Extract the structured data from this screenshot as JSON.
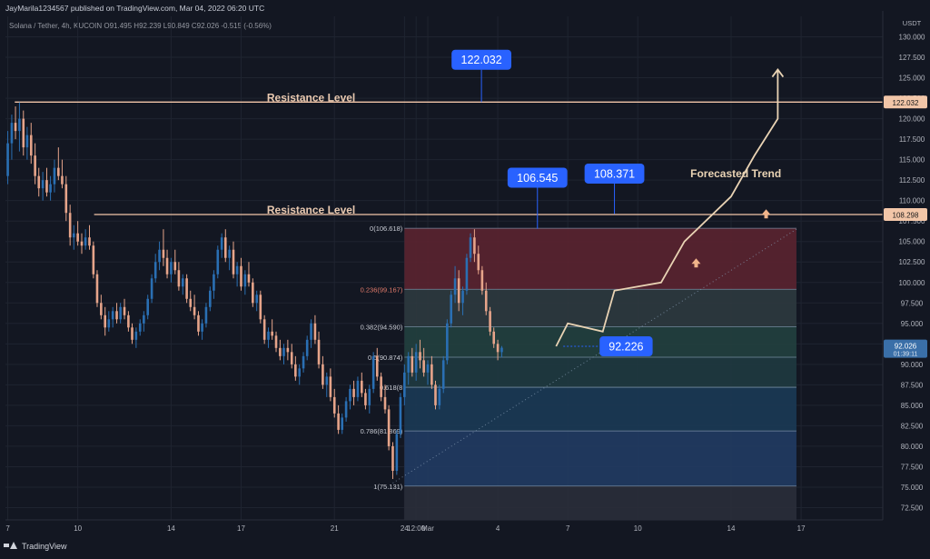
{
  "header": {
    "published_by": "JayMarila1234567 published on TradingView.com, Mar 04, 2022 06:20 UTC"
  },
  "symbol": {
    "name": "Solana / Tether, 4h, KUCOIN",
    "ohlc": "O91.495 H92.239 L90.849 C92.026 -0.515 (-0.56%)"
  },
  "footer": {
    "brand": "TradingView"
  },
  "chart_data": {
    "type": "candlestick",
    "y_axis_unit": "USDT",
    "y_ticks": [
      72.5,
      75.0,
      77.5,
      80.0,
      82.5,
      85.0,
      87.5,
      90.0,
      92.5,
      95.0,
      97.5,
      100.0,
      102.5,
      105.0,
      107.5,
      110.0,
      112.5,
      115.0,
      117.5,
      120.0,
      122.5,
      125.0,
      127.5,
      130.0
    ],
    "y_tick_labels": [
      "72.500",
      "75.000",
      "77.500",
      "80.000",
      "82.500",
      "85.000",
      "87.500",
      "90.000",
      "92.500",
      "95.000",
      "97.500",
      "100.000",
      "102.500",
      "105.000",
      "107.500",
      "110.000",
      "112.500",
      "115.000",
      "117.500",
      "120.000",
      "122.500",
      "125.000",
      "127.500",
      "130.000"
    ],
    "ylim": [
      71.0,
      132.5
    ],
    "x_ticks": [
      {
        "label": "7",
        "day": 0
      },
      {
        "label": "10",
        "day": 3
      },
      {
        "label": "14",
        "day": 7
      },
      {
        "label": "17",
        "day": 10
      },
      {
        "label": "21",
        "day": 14
      },
      {
        "label": "24",
        "day": 17
      },
      {
        "label": "12:00",
        "day": 17.5
      },
      {
        "label": "Mar",
        "day": 18
      },
      {
        "label": "4",
        "day": 21
      },
      {
        "label": "7",
        "day": 24
      },
      {
        "label": "10",
        "day": 27
      },
      {
        "label": "14",
        "day": 31
      },
      {
        "label": "17",
        "day": 34
      }
    ],
    "xlim": [
      -0.1,
      37.5
    ],
    "candles": [
      {
        "d": 0.0,
        "o": 113.0,
        "h": 118.5,
        "l": 112.0,
        "c": 117.0
      },
      {
        "d": 0.17,
        "o": 117.0,
        "h": 120.5,
        "l": 115.0,
        "c": 119.5
      },
      {
        "d": 0.33,
        "o": 119.5,
        "h": 121.5,
        "l": 117.5,
        "c": 118.5
      },
      {
        "d": 0.5,
        "o": 118.5,
        "h": 122.0,
        "l": 116.0,
        "c": 120.0
      },
      {
        "d": 0.67,
        "o": 120.0,
        "h": 121.0,
        "l": 115.5,
        "c": 116.5
      },
      {
        "d": 0.83,
        "o": 116.5,
        "h": 119.0,
        "l": 115.0,
        "c": 118.0
      },
      {
        "d": 1.0,
        "o": 118.0,
        "h": 119.5,
        "l": 114.5,
        "c": 115.5
      },
      {
        "d": 1.17,
        "o": 115.5,
        "h": 117.0,
        "l": 112.0,
        "c": 113.0
      },
      {
        "d": 1.33,
        "o": 113.0,
        "h": 114.0,
        "l": 110.5,
        "c": 111.5
      },
      {
        "d": 1.5,
        "o": 111.5,
        "h": 113.5,
        "l": 110.0,
        "c": 112.5
      },
      {
        "d": 1.67,
        "o": 112.5,
        "h": 114.0,
        "l": 110.5,
        "c": 111.0
      },
      {
        "d": 1.83,
        "o": 111.0,
        "h": 113.0,
        "l": 110.0,
        "c": 112.0
      },
      {
        "d": 2.0,
        "o": 112.0,
        "h": 115.0,
        "l": 111.0,
        "c": 114.0
      },
      {
        "d": 2.17,
        "o": 114.0,
        "h": 116.5,
        "l": 112.5,
        "c": 113.0
      },
      {
        "d": 2.33,
        "o": 113.0,
        "h": 115.0,
        "l": 111.5,
        "c": 112.0
      },
      {
        "d": 2.5,
        "o": 112.0,
        "h": 113.0,
        "l": 107.5,
        "c": 108.5
      },
      {
        "d": 2.67,
        "o": 108.5,
        "h": 109.5,
        "l": 104.5,
        "c": 105.5
      },
      {
        "d": 2.83,
        "o": 105.5,
        "h": 107.0,
        "l": 104.0,
        "c": 106.0
      },
      {
        "d": 3.0,
        "o": 106.0,
        "h": 107.5,
        "l": 104.5,
        "c": 105.0
      },
      {
        "d": 3.17,
        "o": 105.0,
        "h": 106.0,
        "l": 103.5,
        "c": 104.5
      },
      {
        "d": 3.33,
        "o": 104.5,
        "h": 106.5,
        "l": 104.0,
        "c": 105.5
      },
      {
        "d": 3.5,
        "o": 105.5,
        "h": 107.0,
        "l": 104.0,
        "c": 104.5
      },
      {
        "d": 3.67,
        "o": 104.5,
        "h": 105.0,
        "l": 100.5,
        "c": 101.0
      },
      {
        "d": 3.83,
        "o": 101.0,
        "h": 101.5,
        "l": 97.0,
        "c": 97.5
      },
      {
        "d": 4.0,
        "o": 97.5,
        "h": 98.5,
        "l": 95.5,
        "c": 96.0
      },
      {
        "d": 4.17,
        "o": 96.0,
        "h": 97.0,
        "l": 93.5,
        "c": 94.5
      },
      {
        "d": 4.33,
        "o": 94.5,
        "h": 96.5,
        "l": 94.0,
        "c": 95.5
      },
      {
        "d": 4.5,
        "o": 95.5,
        "h": 97.0,
        "l": 94.5,
        "c": 96.5
      },
      {
        "d": 4.67,
        "o": 96.5,
        "h": 97.5,
        "l": 95.0,
        "c": 95.5
      },
      {
        "d": 4.83,
        "o": 95.5,
        "h": 97.5,
        "l": 95.0,
        "c": 97.0
      },
      {
        "d": 5.0,
        "o": 97.0,
        "h": 98.0,
        "l": 95.5,
        "c": 96.0
      },
      {
        "d": 5.17,
        "o": 96.0,
        "h": 96.5,
        "l": 94.0,
        "c": 94.5
      },
      {
        "d": 5.33,
        "o": 94.5,
        "h": 95.0,
        "l": 92.5,
        "c": 93.0
      },
      {
        "d": 5.5,
        "o": 93.0,
        "h": 94.5,
        "l": 92.0,
        "c": 94.0
      },
      {
        "d": 5.67,
        "o": 94.0,
        "h": 95.5,
        "l": 93.5,
        "c": 95.0
      },
      {
        "d": 5.83,
        "o": 95.0,
        "h": 96.5,
        "l": 94.0,
        "c": 96.0
      },
      {
        "d": 6.0,
        "o": 96.0,
        "h": 98.5,
        "l": 95.5,
        "c": 98.0
      },
      {
        "d": 6.17,
        "o": 98.0,
        "h": 101.0,
        "l": 97.5,
        "c": 100.5
      },
      {
        "d": 6.33,
        "o": 100.5,
        "h": 103.5,
        "l": 100.0,
        "c": 102.5
      },
      {
        "d": 6.5,
        "o": 102.5,
        "h": 105.0,
        "l": 101.5,
        "c": 104.0
      },
      {
        "d": 6.67,
        "o": 104.0,
        "h": 106.5,
        "l": 102.0,
        "c": 103.0
      },
      {
        "d": 6.83,
        "o": 103.0,
        "h": 104.0,
        "l": 100.5,
        "c": 101.0
      },
      {
        "d": 7.0,
        "o": 101.0,
        "h": 103.0,
        "l": 100.0,
        "c": 102.5
      },
      {
        "d": 7.17,
        "o": 102.5,
        "h": 104.0,
        "l": 101.0,
        "c": 101.5
      },
      {
        "d": 7.33,
        "o": 101.5,
        "h": 102.5,
        "l": 99.0,
        "c": 99.5
      },
      {
        "d": 7.5,
        "o": 99.5,
        "h": 101.0,
        "l": 98.5,
        "c": 100.5
      },
      {
        "d": 7.67,
        "o": 100.5,
        "h": 101.0,
        "l": 97.5,
        "c": 98.0
      },
      {
        "d": 7.83,
        "o": 98.0,
        "h": 99.0,
        "l": 96.5,
        "c": 97.0
      },
      {
        "d": 8.0,
        "o": 97.0,
        "h": 98.5,
        "l": 95.5,
        "c": 96.0
      },
      {
        "d": 8.17,
        "o": 96.0,
        "h": 96.5,
        "l": 93.5,
        "c": 94.0
      },
      {
        "d": 8.33,
        "o": 94.0,
        "h": 95.5,
        "l": 93.0,
        "c": 95.0
      },
      {
        "d": 8.5,
        "o": 95.0,
        "h": 97.5,
        "l": 94.5,
        "c": 97.0
      },
      {
        "d": 8.67,
        "o": 97.0,
        "h": 99.5,
        "l": 96.5,
        "c": 99.0
      },
      {
        "d": 8.83,
        "o": 99.0,
        "h": 101.5,
        "l": 98.0,
        "c": 101.0
      },
      {
        "d": 9.0,
        "o": 101.0,
        "h": 104.5,
        "l": 100.5,
        "c": 104.0
      },
      {
        "d": 9.17,
        "o": 104.0,
        "h": 106.0,
        "l": 103.0,
        "c": 105.5
      },
      {
        "d": 9.33,
        "o": 105.5,
        "h": 106.5,
        "l": 102.5,
        "c": 103.0
      },
      {
        "d": 9.5,
        "o": 103.0,
        "h": 104.5,
        "l": 101.5,
        "c": 104.0
      },
      {
        "d": 9.67,
        "o": 104.0,
        "h": 105.0,
        "l": 100.5,
        "c": 101.0
      },
      {
        "d": 9.83,
        "o": 101.0,
        "h": 102.5,
        "l": 99.5,
        "c": 102.0
      },
      {
        "d": 10.0,
        "o": 102.0,
        "h": 103.0,
        "l": 99.0,
        "c": 99.5
      },
      {
        "d": 10.17,
        "o": 99.5,
        "h": 101.5,
        "l": 98.5,
        "c": 101.0
      },
      {
        "d": 10.33,
        "o": 101.0,
        "h": 102.5,
        "l": 99.5,
        "c": 100.0
      },
      {
        "d": 10.5,
        "o": 100.0,
        "h": 100.5,
        "l": 97.0,
        "c": 97.5
      },
      {
        "d": 10.67,
        "o": 97.5,
        "h": 99.0,
        "l": 96.5,
        "c": 98.5
      },
      {
        "d": 10.83,
        "o": 98.5,
        "h": 99.0,
        "l": 95.0,
        "c": 95.5
      },
      {
        "d": 11.0,
        "o": 95.5,
        "h": 96.0,
        "l": 92.5,
        "c": 93.0
      },
      {
        "d": 11.17,
        "o": 93.0,
        "h": 94.5,
        "l": 92.0,
        "c": 94.0
      },
      {
        "d": 11.33,
        "o": 94.0,
        "h": 95.5,
        "l": 93.0,
        "c": 93.5
      },
      {
        "d": 11.5,
        "o": 93.5,
        "h": 94.0,
        "l": 91.5,
        "c": 92.0
      },
      {
        "d": 11.67,
        "o": 92.0,
        "h": 93.0,
        "l": 90.5,
        "c": 91.0
      },
      {
        "d": 11.83,
        "o": 91.0,
        "h": 92.5,
        "l": 90.0,
        "c": 92.0
      },
      {
        "d": 12.0,
        "o": 92.0,
        "h": 93.0,
        "l": 90.5,
        "c": 91.5
      },
      {
        "d": 12.17,
        "o": 91.5,
        "h": 92.5,
        "l": 89.5,
        "c": 90.0
      },
      {
        "d": 12.33,
        "o": 90.0,
        "h": 91.0,
        "l": 88.0,
        "c": 88.5
      },
      {
        "d": 12.5,
        "o": 88.5,
        "h": 90.0,
        "l": 87.5,
        "c": 89.5
      },
      {
        "d": 12.67,
        "o": 89.5,
        "h": 91.5,
        "l": 89.0,
        "c": 91.0
      },
      {
        "d": 12.83,
        "o": 91.0,
        "h": 93.5,
        "l": 90.5,
        "c": 93.0
      },
      {
        "d": 13.0,
        "o": 93.0,
        "h": 95.5,
        "l": 92.0,
        "c": 95.0
      },
      {
        "d": 13.17,
        "o": 95.0,
        "h": 96.0,
        "l": 92.5,
        "c": 93.0
      },
      {
        "d": 13.33,
        "o": 93.0,
        "h": 94.0,
        "l": 89.5,
        "c": 90.0
      },
      {
        "d": 13.5,
        "o": 90.0,
        "h": 91.0,
        "l": 87.0,
        "c": 87.5
      },
      {
        "d": 13.67,
        "o": 87.5,
        "h": 89.0,
        "l": 86.0,
        "c": 88.5
      },
      {
        "d": 13.83,
        "o": 88.5,
        "h": 89.5,
        "l": 85.5,
        "c": 86.0
      },
      {
        "d": 14.0,
        "o": 86.0,
        "h": 87.0,
        "l": 83.5,
        "c": 84.0
      },
      {
        "d": 14.17,
        "o": 84.0,
        "h": 85.0,
        "l": 81.5,
        "c": 82.0
      },
      {
        "d": 14.33,
        "o": 82.0,
        "h": 84.0,
        "l": 81.5,
        "c": 83.5
      },
      {
        "d": 14.5,
        "o": 83.5,
        "h": 86.0,
        "l": 83.0,
        "c": 85.5
      },
      {
        "d": 14.67,
        "o": 85.5,
        "h": 87.5,
        "l": 84.5,
        "c": 87.0
      },
      {
        "d": 14.83,
        "o": 87.0,
        "h": 88.0,
        "l": 85.0,
        "c": 86.0
      },
      {
        "d": 15.0,
        "o": 86.0,
        "h": 88.5,
        "l": 85.5,
        "c": 88.0
      },
      {
        "d": 15.17,
        "o": 88.0,
        "h": 89.0,
        "l": 86.0,
        "c": 86.5
      },
      {
        "d": 15.33,
        "o": 86.5,
        "h": 87.0,
        "l": 84.5,
        "c": 85.0
      },
      {
        "d": 15.5,
        "o": 85.0,
        "h": 87.5,
        "l": 84.0,
        "c": 87.0
      },
      {
        "d": 15.67,
        "o": 87.0,
        "h": 91.5,
        "l": 86.5,
        "c": 91.0
      },
      {
        "d": 15.83,
        "o": 91.0,
        "h": 92.0,
        "l": 88.0,
        "c": 88.5
      },
      {
        "d": 16.0,
        "o": 88.5,
        "h": 89.0,
        "l": 85.5,
        "c": 86.0
      },
      {
        "d": 16.17,
        "o": 86.0,
        "h": 87.5,
        "l": 84.0,
        "c": 84.5
      },
      {
        "d": 16.33,
        "o": 84.5,
        "h": 85.0,
        "l": 79.5,
        "c": 80.0
      },
      {
        "d": 16.5,
        "o": 80.0,
        "h": 80.5,
        "l": 76.0,
        "c": 77.0
      },
      {
        "d": 16.67,
        "o": 77.0,
        "h": 82.0,
        "l": 76.5,
        "c": 81.5
      },
      {
        "d": 16.83,
        "o": 81.5,
        "h": 86.5,
        "l": 81.0,
        "c": 86.0
      },
      {
        "d": 17.0,
        "o": 86.0,
        "h": 90.0,
        "l": 85.0,
        "c": 89.0
      },
      {
        "d": 17.17,
        "o": 89.0,
        "h": 91.5,
        "l": 87.5,
        "c": 91.0
      },
      {
        "d": 17.33,
        "o": 91.0,
        "h": 92.0,
        "l": 88.5,
        "c": 89.0
      },
      {
        "d": 17.5,
        "o": 89.0,
        "h": 92.5,
        "l": 88.0,
        "c": 91.5
      },
      {
        "d": 17.67,
        "o": 91.5,
        "h": 93.0,
        "l": 89.5,
        "c": 90.5
      },
      {
        "d": 17.83,
        "o": 90.5,
        "h": 92.0,
        "l": 88.5,
        "c": 89.0
      },
      {
        "d": 18.0,
        "o": 89.0,
        "h": 90.5,
        "l": 87.5,
        "c": 90.0
      },
      {
        "d": 18.17,
        "o": 90.0,
        "h": 91.0,
        "l": 87.0,
        "c": 87.5
      },
      {
        "d": 18.33,
        "o": 87.5,
        "h": 88.0,
        "l": 84.5,
        "c": 85.0
      },
      {
        "d": 18.5,
        "o": 85.0,
        "h": 87.5,
        "l": 84.5,
        "c": 87.0
      },
      {
        "d": 18.67,
        "o": 87.0,
        "h": 91.0,
        "l": 86.5,
        "c": 90.5
      },
      {
        "d": 18.83,
        "o": 90.5,
        "h": 95.5,
        "l": 90.0,
        "c": 95.0
      },
      {
        "d": 19.0,
        "o": 95.0,
        "h": 99.0,
        "l": 94.5,
        "c": 98.5
      },
      {
        "d": 19.17,
        "o": 98.5,
        "h": 102.0,
        "l": 97.5,
        "c": 100.5
      },
      {
        "d": 19.33,
        "o": 100.5,
        "h": 101.5,
        "l": 96.5,
        "c": 97.5
      },
      {
        "d": 19.5,
        "o": 97.5,
        "h": 99.5,
        "l": 96.0,
        "c": 99.0
      },
      {
        "d": 19.67,
        "o": 99.0,
        "h": 103.5,
        "l": 98.5,
        "c": 103.0
      },
      {
        "d": 19.83,
        "o": 103.0,
        "h": 106.0,
        "l": 102.5,
        "c": 105.5
      },
      {
        "d": 20.0,
        "o": 105.5,
        "h": 106.5,
        "l": 102.5,
        "c": 103.5
      },
      {
        "d": 20.17,
        "o": 103.5,
        "h": 104.5,
        "l": 101.0,
        "c": 101.5
      },
      {
        "d": 20.33,
        "o": 101.5,
        "h": 102.0,
        "l": 98.5,
        "c": 99.0
      },
      {
        "d": 20.5,
        "o": 99.0,
        "h": 100.0,
        "l": 96.0,
        "c": 96.5
      },
      {
        "d": 20.67,
        "o": 96.5,
        "h": 97.0,
        "l": 93.5,
        "c": 94.0
      },
      {
        "d": 20.83,
        "o": 94.0,
        "h": 94.5,
        "l": 92.0,
        "c": 92.5
      },
      {
        "d": 21.0,
        "o": 92.5,
        "h": 93.0,
        "l": 90.5,
        "c": 91.5
      },
      {
        "d": 21.17,
        "o": 91.495,
        "h": 92.239,
        "l": 90.849,
        "c": 92.026
      }
    ],
    "fib_levels": [
      {
        "ratio": "0",
        "price": 106.618,
        "label": "0(106.618)"
      },
      {
        "ratio": "0.236",
        "price": 99.167,
        "label": "0.236(99.167)"
      },
      {
        "ratio": "0.382",
        "price": 94.59,
        "label": "0.382(94.590)"
      },
      {
        "ratio": "0.5",
        "price": 90.874,
        "label": "0.5(90.874)"
      },
      {
        "ratio": "0.618",
        "price": 87.2,
        "label": "0.618(8"
      },
      {
        "ratio": "0.786",
        "price": 81.869,
        "label": "0.786(81.869)"
      },
      {
        "ratio": "1",
        "price": 75.131,
        "label": "1(75.131)"
      }
    ],
    "fib_x_range": [
      17.0,
      33.8
    ],
    "fib_band_colors": [
      "#5b2430",
      "#2e3a3f",
      "#22403f",
      "#1f3a40",
      "#1b3a55",
      "#213b63",
      "#2a2e3a"
    ],
    "resistance_levels": [
      {
        "price": 122.032,
        "label": "Resistance Level",
        "x_from": 0.3,
        "label_at": 13.0
      },
      {
        "price": 108.298,
        "label": "Resistance Level",
        "x_from": 3.7,
        "label_at": 13.0
      }
    ],
    "resistance_axis_labels": [
      "122.032",
      "108.298"
    ],
    "callouts": [
      {
        "text": "122.032",
        "x": 20.3,
        "y": 127.2,
        "pointer_y": 122.032
      },
      {
        "text": "106.545",
        "x": 22.7,
        "y": 112.8,
        "pointer_y": 106.545
      },
      {
        "text": "108.371",
        "x": 26.0,
        "y": 113.3,
        "pointer_y": 108.371
      },
      {
        "text": "92.226",
        "x": 26.5,
        "y": 92.2,
        "pointer_y": null
      }
    ],
    "forecast_path": [
      [
        23.5,
        92.2
      ],
      [
        24.0,
        95.0
      ],
      [
        25.5,
        94.0
      ],
      [
        26.0,
        99.0
      ],
      [
        28.0,
        100.0
      ],
      [
        29.0,
        105.0
      ],
      [
        31.0,
        110.5
      ],
      [
        32.0,
        115.5
      ],
      [
        33.0,
        120.0
      ],
      [
        33.0,
        126.0
      ]
    ],
    "forecast_label": "Forecasted Trend",
    "trend_arrows": [
      {
        "x": 29.5,
        "y": 102.5
      },
      {
        "x": 32.5,
        "y": 108.5
      }
    ],
    "dotted_trend": [
      [
        16.5,
        75.5
      ],
      [
        33.8,
        106.5
      ]
    ],
    "price_label": {
      "value": "92.026",
      "sub": "01:39:11",
      "price": 92.026
    },
    "colors": {
      "bg": "#131722",
      "up": "#2a6fb3",
      "down": "#e6a48a",
      "resistance": "#f2c6a8",
      "callout": "#2962ff",
      "forecast": "#e9d3b4",
      "grid": "#1f2430",
      "axis_text": "#b2b5be"
    }
  }
}
